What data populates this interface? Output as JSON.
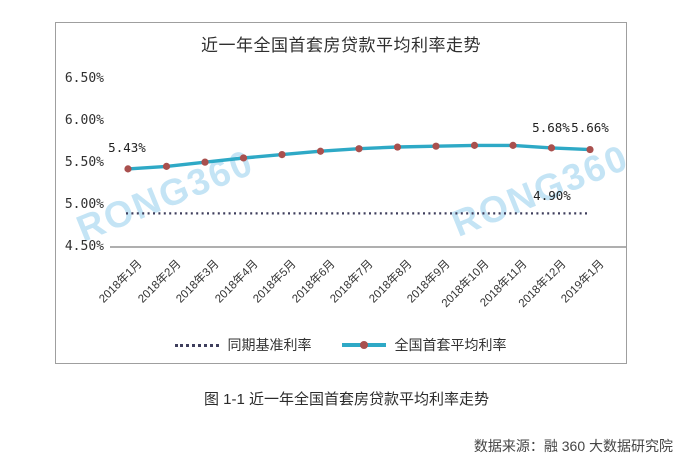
{
  "chart": {
    "title": "近一年全国首套房贷款平均利率走势",
    "watermark": "RONG360",
    "annotations": {
      "start": "5.43%",
      "dec2018": "5.68%",
      "jan2019": "5.66%",
      "benchmark": "4.90%"
    },
    "legend": [
      {
        "label": "同期基准利率"
      },
      {
        "label": "全国首套平均利率"
      }
    ]
  },
  "caption": "图 1-1 近一年全国首套房贷款平均利率走势",
  "source": "数据来源：融 360 大数据研究院",
  "chart_data": {
    "type": "line",
    "title": "近一年全国首套房贷款平均利率走势",
    "categories": [
      "2018年1月",
      "2018年2月",
      "2018年3月",
      "2018年4月",
      "2018年5月",
      "2018年6月",
      "2018年7月",
      "2018年8月",
      "2018年9月",
      "2018年10月",
      "2018年11月",
      "2018年12月",
      "2019年1月"
    ],
    "series": [
      {
        "name": "同期基准利率",
        "style": "dotted",
        "color": "#3e3e5c",
        "values": [
          4.9,
          4.9,
          4.9,
          4.9,
          4.9,
          4.9,
          4.9,
          4.9,
          4.9,
          4.9,
          4.9,
          4.9,
          4.9
        ]
      },
      {
        "name": "全国首套平均利率",
        "style": "solid",
        "color": "#2ea9c6",
        "marker_color": "#a9504e",
        "values": [
          5.43,
          5.46,
          5.51,
          5.56,
          5.6,
          5.64,
          5.67,
          5.69,
          5.7,
          5.71,
          5.71,
          5.68,
          5.66
        ]
      }
    ],
    "xlabel": "",
    "ylabel": "",
    "ylim": [
      4.5,
      6.5
    ],
    "y_ticks": [
      "6.50%",
      "6.00%",
      "5.50%",
      "5.00%",
      "4.50%"
    ],
    "grid": false,
    "legend_position": "bottom",
    "annotations": [
      "5.43%",
      "5.68%",
      "5.66%",
      "4.90%"
    ]
  }
}
